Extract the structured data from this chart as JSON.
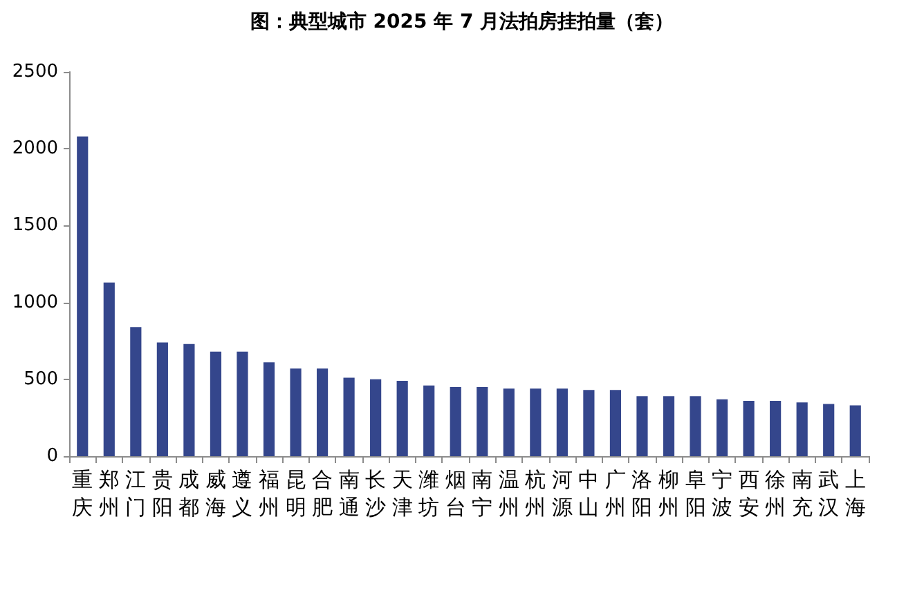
{
  "chart_data": {
    "type": "bar",
    "title": "图：典型城市 2025 年 7 月法拍房挂拍量（套）",
    "categories": [
      "重庆",
      "郑州",
      "江门",
      "贵阳",
      "成都",
      "威海",
      "遵义",
      "福州",
      "昆明",
      "合肥",
      "南通",
      "长沙",
      "天津",
      "潍坊",
      "烟台",
      "南宁",
      "温州",
      "杭州",
      "河源",
      "中山",
      "广州",
      "洛阳",
      "柳州",
      "阜阳",
      "宁波",
      "西安",
      "徐州",
      "南充",
      "武汉",
      "上海"
    ],
    "values": [
      2080,
      1130,
      840,
      740,
      730,
      680,
      680,
      610,
      570,
      570,
      510,
      500,
      490,
      460,
      450,
      450,
      440,
      440,
      440,
      430,
      430,
      390,
      390,
      390,
      370,
      360,
      360,
      350,
      340,
      330
    ],
    "color": "#34468c",
    "ylim": [
      0,
      2500
    ],
    "yticks": [
      0,
      500,
      1000,
      1500,
      2000,
      2500
    ]
  }
}
